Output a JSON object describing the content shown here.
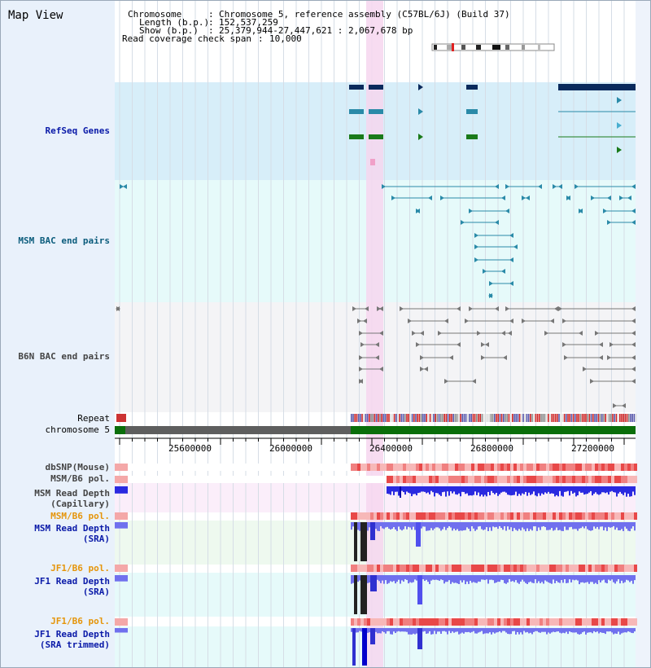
{
  "view": {
    "title": "Map View",
    "chromosome_label": "Chromosome",
    "chromosome_value": "Chromosome 5, reference assembly (C57BL/6J) (Build 37)",
    "length_label": "Length (b.p.)",
    "length_value": "152,537,259",
    "show_label": "Show (b.p.)",
    "show_value": "25,379,944-27,447,621 : 2,067,678 bp",
    "coverage_label": "Read coverage check span",
    "coverage_value": "10,000"
  },
  "tracks": {
    "refseq": "RefSeq Genes",
    "msm_bac": "MSM BAC end pairs",
    "b6n_bac": "B6N BAC end pairs",
    "repeat": "Repeat",
    "chromosome": "chromosome 5",
    "dbsnp": "dbSNP(Mouse)",
    "msm_pol_1": "MSM/B6 pol.",
    "msm_depth_cap_1": "MSM Read Depth",
    "msm_depth_cap_2": "(Capillary)",
    "msm_pol_2": "MSM/B6 pol.",
    "msm_depth_sra_1": "MSM Read Depth",
    "msm_depth_sra_2": "(SRA)",
    "jf1_pol_1": "JF1/B6 pol.",
    "jf1_depth_sra_1": "JF1 Read Depth",
    "jf1_depth_sra_2": "(SRA)",
    "jf1_pol_2": "JF1/B6 pol.",
    "jf1_depth_trim_1": "JF1 Read Depth",
    "jf1_depth_trim_2": "(SRA trimmed)"
  },
  "ruler": {
    "ticks": [
      "25600000",
      "26000000",
      "26400000",
      "26800000",
      "27200000"
    ]
  },
  "colors": {
    "refseq_bg": "#d7eef9",
    "bac_bg": "#e6fafa",
    "b6n_bg": "#f4f4f6",
    "highlight": "#f6d6ee",
    "chromosome_grey": "#5e5e5e",
    "chromosome_green": "#0a6e0a",
    "depth_blue": "#2a2ae0"
  }
}
